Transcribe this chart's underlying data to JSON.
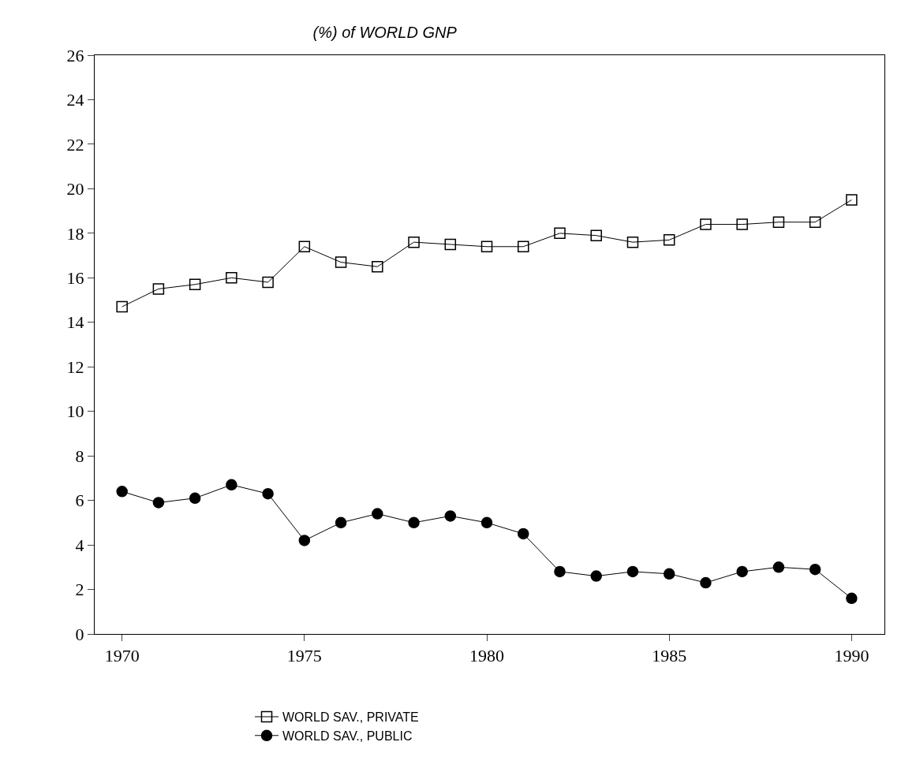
{
  "chart_data": {
    "type": "line",
    "title": "(%) of WORLD GNP",
    "x": [
      1970,
      1971,
      1972,
      1973,
      1974,
      1975,
      1976,
      1977,
      1978,
      1979,
      1980,
      1981,
      1982,
      1983,
      1984,
      1985,
      1986,
      1987,
      1988,
      1989,
      1990
    ],
    "series": [
      {
        "name": "WORLD SAV., PRIVATE",
        "color": "#000000",
        "marker": "square",
        "values": [
          14.7,
          15.5,
          15.7,
          16.0,
          15.8,
          17.4,
          16.7,
          16.5,
          17.6,
          17.5,
          17.4,
          17.4,
          18.0,
          17.9,
          17.6,
          17.7,
          18.4,
          18.4,
          18.5,
          18.5,
          19.5
        ]
      },
      {
        "name": "WORLD SAV., PUBLIC",
        "color": "#000000",
        "marker": "circle",
        "values": [
          6.4,
          5.9,
          6.1,
          6.7,
          6.3,
          4.2,
          5.0,
          5.4,
          5.0,
          5.3,
          5.0,
          4.5,
          2.8,
          2.6,
          2.8,
          2.7,
          2.3,
          2.8,
          3.0,
          2.9,
          1.6
        ]
      }
    ],
    "xlim": [
      1969.25,
      1990.9
    ],
    "xticks": [
      1970,
      1975,
      1980,
      1985,
      1990
    ],
    "ylim": [
      0,
      26
    ],
    "yticks": [
      0,
      2,
      4,
      6,
      8,
      10,
      12,
      14,
      16,
      18,
      20,
      22,
      24,
      26
    ],
    "grid": false,
    "legend": "bottom",
    "line_style": "solid"
  }
}
